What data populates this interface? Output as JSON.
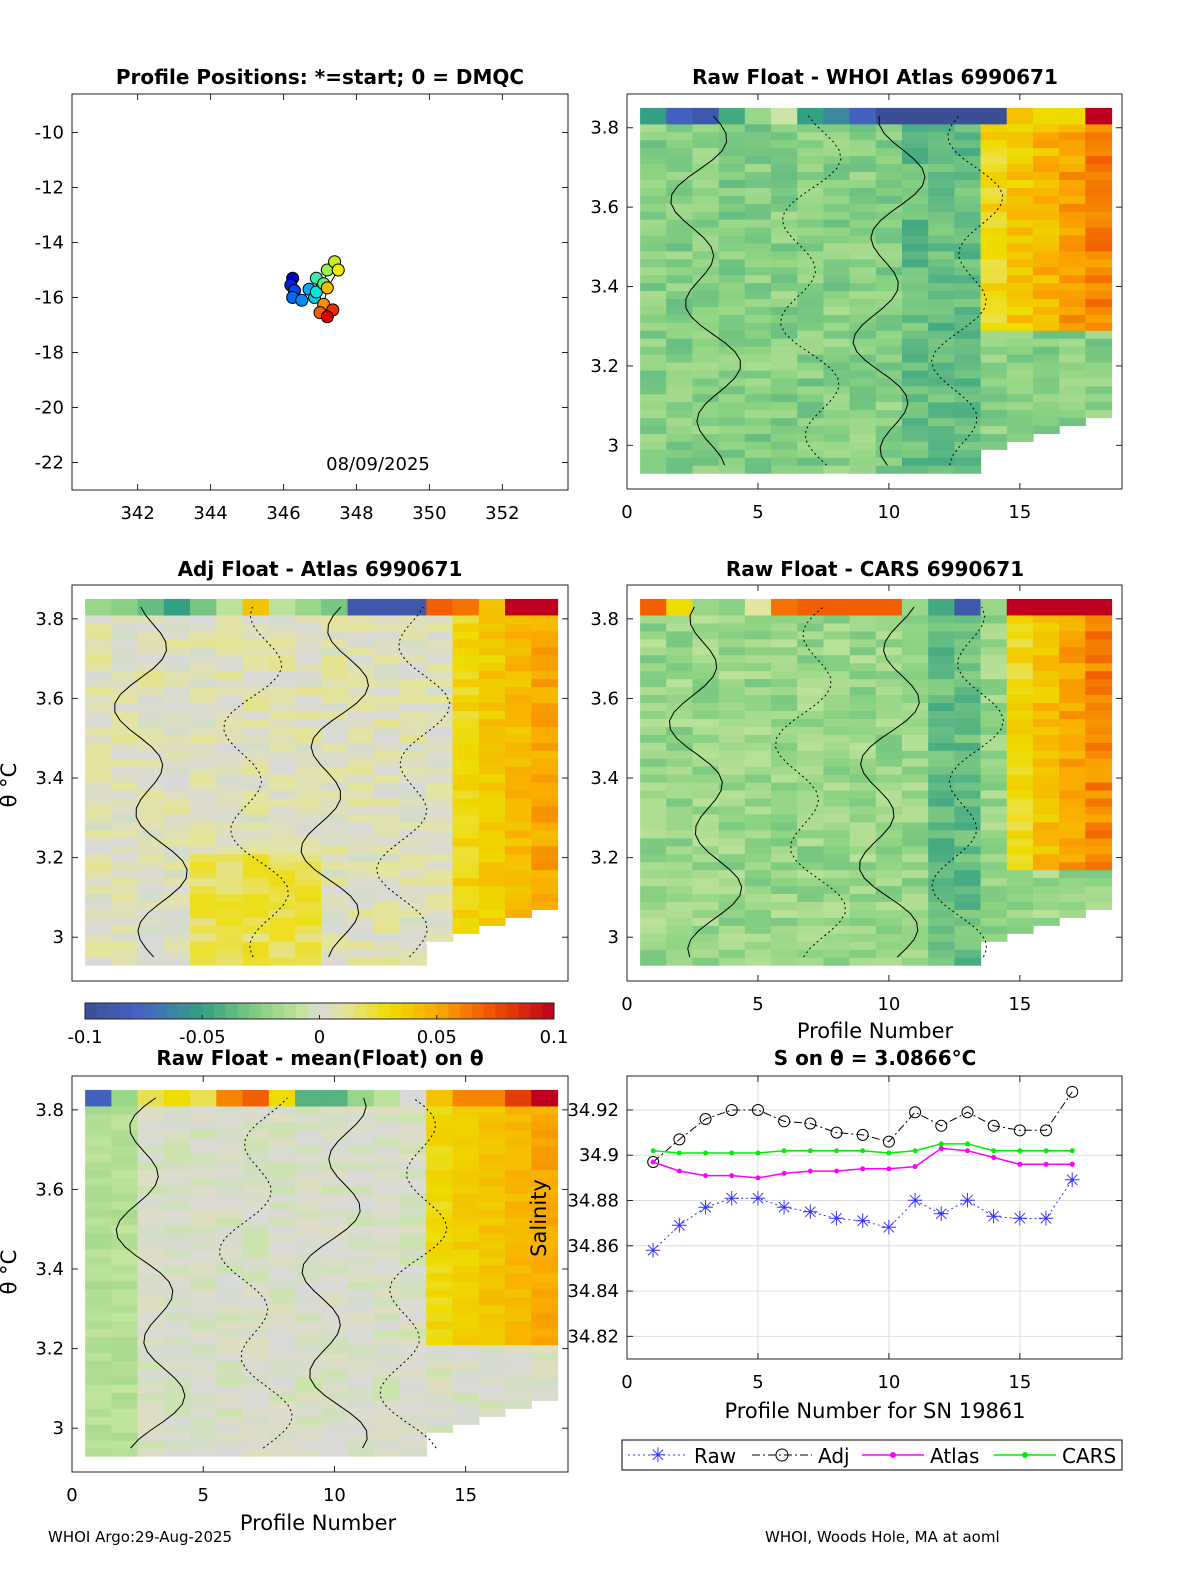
{
  "footer": {
    "left": "WHOI Argo:29-Aug-2025",
    "right": "WHOI, Woods Hole, MA at aoml"
  },
  "colors": {
    "raw": "#3333ff",
    "adj": "#000000",
    "atlas": "#ff00ff",
    "cars": "#00ee00"
  },
  "chart_data": [
    {
      "id": "positions",
      "type": "scatter",
      "title": "Profile Positions: *=start; 0 = DMQC",
      "annotation": "08/09/2025",
      "xlabel": "",
      "ylabel": "",
      "xlim": [
        340.2,
        353.8
      ],
      "ylim": [
        -23,
        -8.6
      ],
      "xticks": [
        "342",
        "344",
        "346",
        "348",
        "350",
        "352"
      ],
      "yticks": [
        "-10",
        "-12",
        "-14",
        "-16",
        "-18",
        "-20",
        "-22"
      ],
      "x": [
        346.25,
        346.2,
        346.3,
        346.25,
        346.5,
        346.7,
        346.85,
        346.9,
        346.9,
        347.1,
        347.2,
        347.4,
        347.5,
        347.2,
        347.1,
        347.0,
        347.35,
        347.2
      ],
      "y": [
        -15.3,
        -15.55,
        -15.75,
        -16.0,
        -16.1,
        -15.7,
        -16.0,
        -15.8,
        -15.3,
        -15.5,
        -15.0,
        -14.7,
        -15.0,
        -15.65,
        -16.25,
        -16.55,
        -16.45,
        -16.7
      ]
    },
    {
      "id": "raw-atlas",
      "type": "heatmap",
      "title": "Raw Float - WHOI Atlas  6990671",
      "xlabel": "",
      "ylabel": "",
      "xlim": [
        0,
        18.9
      ],
      "ylim": [
        2.89,
        3.885
      ],
      "xticks": [
        "0",
        "5",
        "10",
        "15"
      ],
      "yticks": [
        "3",
        "3.2",
        "3.4",
        "3.6",
        "3.8"
      ],
      "profiles": 18
    },
    {
      "id": "adj-atlas",
      "type": "heatmap",
      "title": "Adj Float - Atlas  6990671",
      "xlabel": "",
      "ylabel": "θ °C",
      "xlim": [
        0,
        18.9
      ],
      "ylim": [
        2.89,
        3.885
      ],
      "xticks": [],
      "yticks": [
        "3",
        "3.2",
        "3.4",
        "3.6",
        "3.8"
      ],
      "profiles": 18
    },
    {
      "id": "raw-cars",
      "type": "heatmap",
      "title": "Raw Float - CARS  6990671",
      "xlabel": "Profile Number",
      "ylabel": "",
      "xlim": [
        0,
        18.9
      ],
      "ylim": [
        2.89,
        3.885
      ],
      "xticks": [
        "0",
        "5",
        "10",
        "15"
      ],
      "yticks": [
        "3",
        "3.2",
        "3.4",
        "3.6",
        "3.8"
      ],
      "profiles": 18
    },
    {
      "id": "raw-mean",
      "type": "heatmap",
      "title": "Raw Float - mean(Float) on θ",
      "xlabel": "Profile Number",
      "ylabel": "θ °C",
      "xlim": [
        0,
        18.9
      ],
      "ylim": [
        2.89,
        3.885
      ],
      "xticks": [
        "0",
        "5",
        "10",
        "15"
      ],
      "yticks": [
        "3",
        "3.2",
        "3.4",
        "3.6",
        "3.8"
      ],
      "profiles": 18
    },
    {
      "id": "colorbar",
      "type": "heatmap",
      "range": [
        -0.1,
        0.1
      ],
      "ticks": [
        "-0.1",
        "-0.05",
        "0",
        "0.05",
        "0.1"
      ]
    },
    {
      "id": "salinity",
      "type": "line",
      "title": "S on θ = 3.0866°C",
      "xlabel": "Profile Number for SN 19861",
      "ylabel": "Salinity",
      "xlim": [
        0,
        18.9
      ],
      "ylim": [
        34.81,
        34.935
      ],
      "xticks": [
        "0",
        "5",
        "10",
        "15"
      ],
      "yticks": [
        "34.82",
        "34.84",
        "34.86",
        "34.88",
        "34.9",
        "34.92"
      ],
      "x": [
        1,
        2,
        3,
        4,
        5,
        6,
        7,
        8,
        9,
        10,
        11,
        12,
        13,
        14,
        15,
        16,
        17
      ],
      "series": [
        {
          "name": "Raw",
          "values": [
            34.858,
            34.869,
            34.877,
            34.881,
            34.881,
            34.877,
            34.875,
            34.872,
            34.871,
            34.868,
            34.88,
            34.874,
            34.88,
            34.873,
            34.872,
            34.872,
            34.889
          ]
        },
        {
          "name": "Adj",
          "values": [
            34.897,
            34.907,
            34.916,
            34.92,
            34.92,
            34.915,
            34.914,
            34.91,
            34.909,
            34.906,
            34.919,
            34.913,
            34.919,
            34.913,
            34.911,
            34.911,
            34.928
          ]
        },
        {
          "name": "Atlas",
          "values": [
            34.897,
            34.893,
            34.891,
            34.891,
            34.89,
            34.892,
            34.893,
            34.893,
            34.894,
            34.894,
            34.895,
            34.903,
            34.902,
            34.899,
            34.896,
            34.896,
            34.896
          ]
        },
        {
          "name": "CARS",
          "values": [
            34.902,
            34.901,
            34.901,
            34.901,
            34.901,
            34.902,
            34.902,
            34.902,
            34.902,
            34.901,
            34.902,
            34.905,
            34.905,
            34.902,
            34.902,
            34.902,
            34.902
          ]
        }
      ]
    }
  ]
}
